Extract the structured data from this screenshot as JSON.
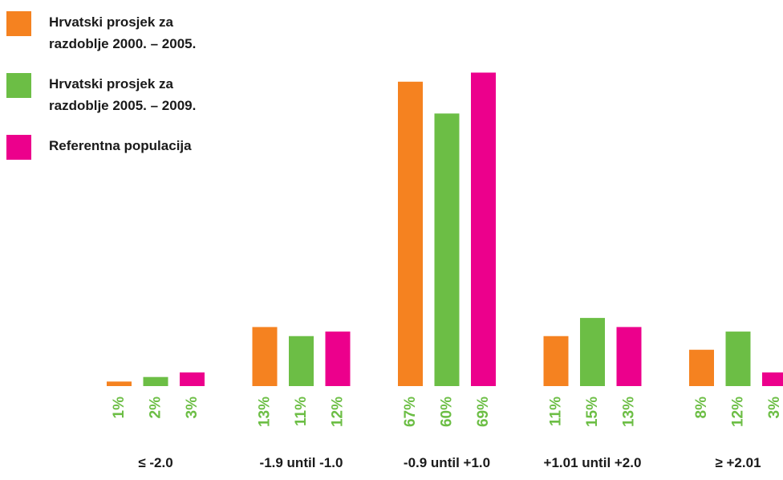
{
  "chart_data": {
    "type": "bar",
    "title": "",
    "xlabel": "",
    "ylabel": "",
    "ylim": [
      0,
      70
    ],
    "grid": false,
    "legend_position": "top-left",
    "categories": [
      "≤ -2.0",
      "-1.9 until -1.0",
      "-0.9 until +1.0",
      "+1.01 until +2.0",
      "≥ +2.01"
    ],
    "series": [
      {
        "name": "Hrvatski prosjek za razdoblje 2000. – 2005.",
        "legend_lines": [
          "Hrvatski prosjek za",
          "razdoblje 2000. – 2005."
        ],
        "color": "#f58220",
        "values": [
          1,
          13,
          67,
          11,
          8
        ],
        "labels": [
          "1%",
          "13%",
          "67%",
          "11%",
          "8%"
        ]
      },
      {
        "name": "Hrvatski prosjek za razdoblje 2005. – 2009.",
        "legend_lines": [
          "Hrvatski prosjek za",
          "razdoblje 2005. – 2009."
        ],
        "color": "#6cbe45",
        "values": [
          2,
          11,
          60,
          15,
          12
        ],
        "labels": [
          "2%",
          "11%",
          "60%",
          "15%",
          "12%"
        ]
      },
      {
        "name": "Referentna populacija",
        "legend_lines": [
          "Referentna populacija"
        ],
        "color": "#ec008c",
        "values": [
          3,
          12,
          69,
          13,
          3
        ],
        "labels": [
          "3%",
          "12%",
          "69%",
          "13%",
          "3%"
        ]
      }
    ],
    "value_label_color": "#6cbe45"
  }
}
